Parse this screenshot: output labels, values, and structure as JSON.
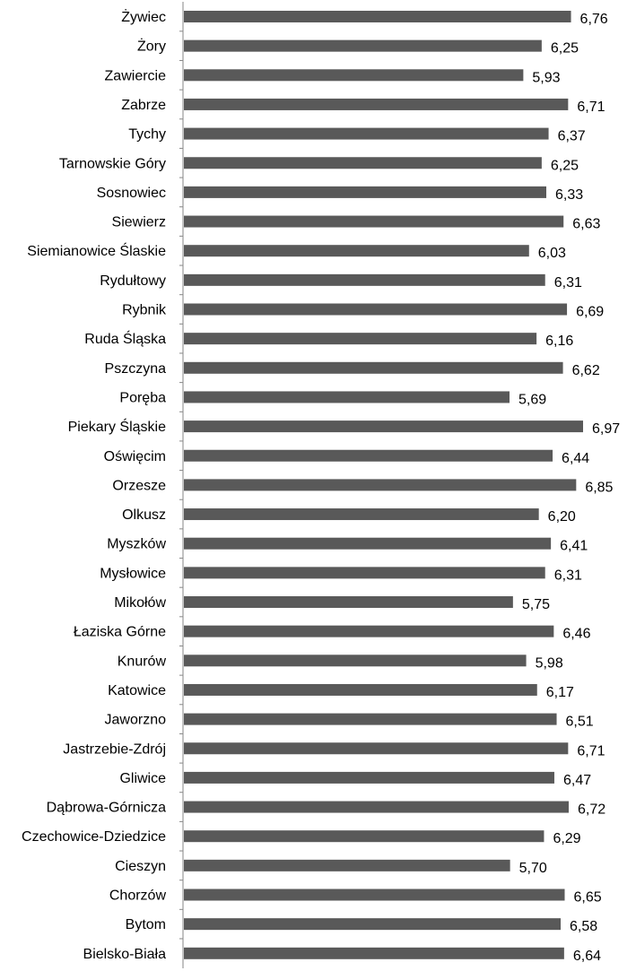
{
  "chart_data": {
    "type": "bar",
    "orientation": "horizontal",
    "title": "",
    "xlabel": "",
    "ylabel": "",
    "xlim": [
      0,
      7
    ],
    "grid": false,
    "legend": "none",
    "bar_color": "#595959",
    "axis_color": "#868686",
    "categories": [
      "Żywiec",
      "Żory",
      "Zawiercie",
      "Zabrze",
      "Tychy",
      "Tarnowskie Góry",
      "Sosnowiec",
      "Siewierz",
      "Siemianowice Ślaskie",
      "Rydułtowy",
      "Rybnik",
      "Ruda Śląska",
      "Pszczyna",
      "Poręba",
      "Piekary Śląskie",
      "Oświęcim",
      "Orzesze",
      "Olkusz",
      "Myszków",
      "Mysłowice",
      "Mikołów",
      "Łaziska Górne",
      "Knurów",
      "Katowice",
      "Jaworzno",
      "Jastrzebie-Zdrój",
      "Gliwice",
      "Dąbrowa-Górnicza",
      "Czechowice-Dziedzice",
      "Cieszyn",
      "Chorzów",
      "Bytom",
      "Bielsko-Biała"
    ],
    "values": [
      6.76,
      6.25,
      5.93,
      6.71,
      6.37,
      6.25,
      6.33,
      6.63,
      6.03,
      6.31,
      6.69,
      6.16,
      6.62,
      5.69,
      6.97,
      6.44,
      6.85,
      6.2,
      6.41,
      6.31,
      5.75,
      6.46,
      5.98,
      6.17,
      6.51,
      6.71,
      6.47,
      6.72,
      6.29,
      5.7,
      6.65,
      6.58,
      6.64
    ],
    "value_labels": [
      "6,76",
      "6,25",
      "5,93",
      "6,71",
      "6,37",
      "6,25",
      "6,33",
      "6,63",
      "6,03",
      "6,31",
      "6,69",
      "6,16",
      "6,62",
      "5,69",
      "6,97",
      "6,44",
      "6,85",
      "6,20",
      "6,41",
      "6,31",
      "5,75",
      "6,46",
      "5,98",
      "6,17",
      "6,51",
      "6,71",
      "6,47",
      "6,72",
      "6,29",
      "5,70",
      "6,65",
      "6,58",
      "6,64"
    ]
  }
}
